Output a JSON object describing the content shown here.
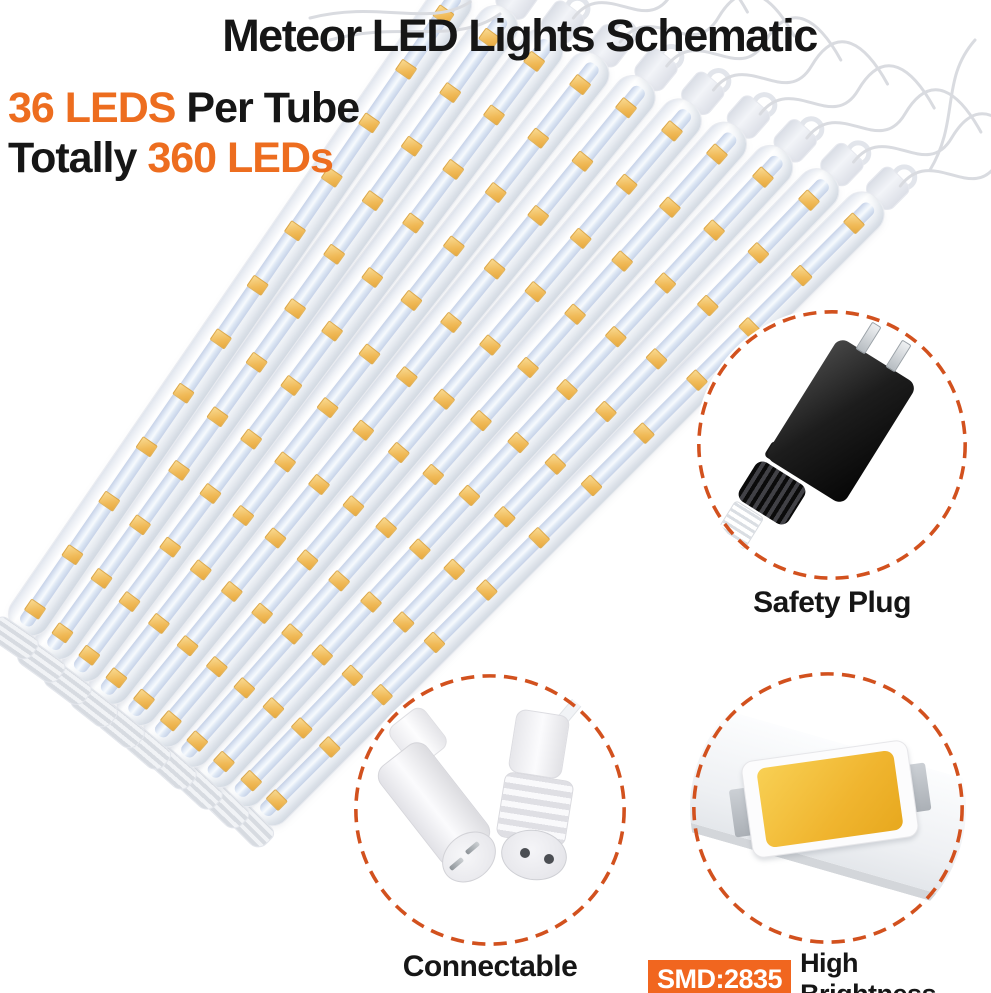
{
  "title": "Meteor LED Lights Schematic",
  "features": {
    "line1_highlight": "36 LEDS",
    "line1_rest": " Per Tube",
    "line2_start": "Totally ",
    "line2_highlight": "360 LEDs"
  },
  "callouts": {
    "safety_plug": {
      "label": "Safety Plug"
    },
    "connectable": {
      "label": "Connectable"
    },
    "smd": {
      "badge": "SMD:2835",
      "label": "High Brightness"
    }
  },
  "specs": {
    "tube_count": 10,
    "leds_per_tube": 36,
    "total_leds": 360,
    "visible_leds_per_tube": 12
  },
  "colors": {
    "accent": "#ED6D1F",
    "badge_bg": "#F1661F",
    "circle_dash": "#D2511E",
    "led_amber": "#EFB957",
    "text": "#161616"
  }
}
